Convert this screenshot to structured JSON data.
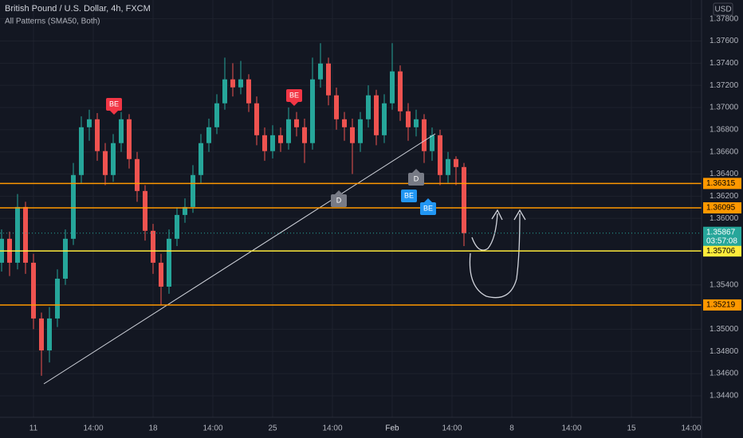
{
  "chart_data": {
    "type": "candlestick",
    "title": "British Pound / U.S. Dollar, 4h, FXCM",
    "subtitle": "All Patterns (SMA50, Both)",
    "currency": "USD",
    "countdown": "03:57:08",
    "up_color": "#26a69a",
    "down_color": "#ef5350",
    "x": [
      -8,
      -6,
      -4,
      -2,
      0,
      2,
      4,
      6,
      8,
      10,
      12,
      14,
      16,
      18,
      20,
      22,
      24,
      26,
      28,
      30,
      32,
      34,
      36,
      38,
      40,
      42,
      44,
      46,
      48,
      50,
      52,
      54,
      56,
      58,
      60,
      62,
      64,
      66,
      68,
      70,
      72,
      74,
      76,
      78,
      80,
      82,
      84,
      86,
      88,
      90,
      92,
      94,
      96,
      98,
      100,
      102,
      104,
      106,
      108
    ],
    "open": [
      1.356,
      1.35816,
      1.356,
      1.36103,
      1.356,
      1.35097,
      1.34809,
      1.35097,
      1.35456,
      1.35816,
      1.36391,
      1.36822,
      1.36894,
      1.36607,
      1.36391,
      1.36679,
      1.36894,
      1.36535,
      1.36247,
      1.35888,
      1.356,
      1.35384,
      1.35816,
      1.36031,
      1.36103,
      1.36391,
      1.36679,
      1.36822,
      1.37038,
      1.37254,
      1.37182,
      1.37254,
      1.37038,
      1.3675,
      1.36607,
      1.3675,
      1.36679,
      1.36894,
      1.36822,
      1.36679,
      1.37254,
      1.37397,
      1.3711,
      1.36894,
      1.36822,
      1.36679,
      1.36894,
      1.3711,
      1.3675,
      1.37038,
      1.37326,
      1.36966,
      1.36822,
      1.36894,
      1.36607,
      1.3675,
      1.36391,
      1.36535,
      1.36463
    ],
    "high": [
      1.359,
      1.3588,
      1.3622,
      1.3615,
      1.3568,
      1.3515,
      1.352,
      1.3554,
      1.359,
      1.365,
      1.3692,
      1.3698,
      1.3695,
      1.3668,
      1.3676,
      1.3696,
      1.3694,
      1.366,
      1.363,
      1.3595,
      1.3568,
      1.359,
      1.361,
      1.3618,
      1.3648,
      1.3676,
      1.369,
      1.3712,
      1.3745,
      1.374,
      1.3742,
      1.373,
      1.371,
      1.3682,
      1.3684,
      1.3682,
      1.37,
      1.3696,
      1.369,
      1.3745,
      1.3758,
      1.3745,
      1.3718,
      1.3696,
      1.369,
      1.3696,
      1.372,
      1.3716,
      1.3712,
      1.3758,
      1.3738,
      1.3704,
      1.3698,
      1.3694,
      1.3682,
      1.368,
      1.366,
      1.3656,
      1.365
    ],
    "low": [
      1.3552,
      1.3548,
      1.3554,
      1.355,
      1.35,
      1.3458,
      1.347,
      1.3502,
      1.354,
      1.3576,
      1.3632,
      1.367,
      1.3652,
      1.363,
      1.3633,
      1.366,
      1.3645,
      1.3615,
      1.358,
      1.355,
      1.3522,
      1.3532,
      1.3575,
      1.3596,
      1.3605,
      1.3632,
      1.366,
      1.3676,
      1.3698,
      1.371,
      1.3712,
      1.3696,
      1.3666,
      1.3652,
      1.3654,
      1.366,
      1.3662,
      1.3674,
      1.365,
      1.3662,
      1.3718,
      1.3702,
      1.368,
      1.367,
      1.364,
      1.366,
      1.3682,
      1.3666,
      1.3668,
      1.3698,
      1.3688,
      1.367,
      1.3674,
      1.365,
      1.3652,
      1.363,
      1.3632,
      1.363,
      1.3575
    ],
    "close": [
      1.35816,
      1.356,
      1.36103,
      1.356,
      1.35097,
      1.34809,
      1.35097,
      1.35456,
      1.35816,
      1.36391,
      1.36822,
      1.36894,
      1.36607,
      1.36391,
      1.36679,
      1.36894,
      1.36535,
      1.36247,
      1.35888,
      1.356,
      1.35384,
      1.35816,
      1.36031,
      1.36103,
      1.36391,
      1.36679,
      1.36822,
      1.37038,
      1.37254,
      1.37182,
      1.37254,
      1.37038,
      1.3675,
      1.36607,
      1.3675,
      1.36679,
      1.36894,
      1.36822,
      1.36679,
      1.37254,
      1.37397,
      1.3711,
      1.36894,
      1.36822,
      1.36679,
      1.36894,
      1.3711,
      1.3675,
      1.37038,
      1.37326,
      1.36966,
      1.36822,
      1.36894,
      1.36607,
      1.3675,
      1.36391,
      1.36535,
      1.36463,
      1.35867
    ],
    "xlim": [
      -8.4,
      167.6
    ],
    "ylim": [
      1.3422,
      1.3797
    ],
    "xticks": [
      {
        "value": 0,
        "label": "11"
      },
      {
        "value": 15,
        "label": "14:00"
      },
      {
        "value": 30,
        "label": "18"
      },
      {
        "value": 45,
        "label": "14:00"
      },
      {
        "value": 60,
        "label": "25"
      },
      {
        "value": 75,
        "label": "14:00"
      },
      {
        "value": 90,
        "label": "Feb"
      },
      {
        "value": 105,
        "label": "14:00"
      },
      {
        "value": 120,
        "label": "8"
      },
      {
        "value": 135,
        "label": "14:00"
      },
      {
        "value": 150,
        "label": "15"
      },
      {
        "value": 165,
        "label": "14:00"
      }
    ],
    "yticks": [
      {
        "value": 1.378,
        "label": "1.37800"
      },
      {
        "value": 1.376,
        "label": "1.37600"
      },
      {
        "value": 1.374,
        "label": "1.37400"
      },
      {
        "value": 1.372,
        "label": "1.37200"
      },
      {
        "value": 1.37,
        "label": "1.37000"
      },
      {
        "value": 1.368,
        "label": "1.36800"
      },
      {
        "value": 1.366,
        "label": "1.36600"
      },
      {
        "value": 1.364,
        "label": "1.36400"
      },
      {
        "value": 1.362,
        "label": "1.36200"
      },
      {
        "value": 1.36,
        "label": "1.36000"
      },
      {
        "value": 1.354,
        "label": "1.35400"
      },
      {
        "value": 1.35,
        "label": "1.35000"
      },
      {
        "value": 1.348,
        "label": "1.34800"
      },
      {
        "value": 1.346,
        "label": "1.34600"
      },
      {
        "value": 1.344,
        "label": "1.34400"
      }
    ],
    "grid": true,
    "levels": [
      {
        "value": 1.36315,
        "color": "#ff9800"
      },
      {
        "value": 1.36095,
        "color": "#ff9800"
      },
      {
        "value": 1.35706,
        "color": "#ffeb3b"
      },
      {
        "value": 1.35219,
        "color": "#ff9800"
      }
    ],
    "annotations": [
      {
        "text": "BE",
        "color": "#f23645"
      },
      {
        "text": "BE",
        "color": "#f23645"
      },
      {
        "text": "D",
        "color": "#787b86"
      },
      {
        "text": "D",
        "color": "#787b86"
      },
      {
        "text": "BE",
        "color": "#2196f3"
      },
      {
        "text": "BE",
        "color": "#2196f3"
      }
    ]
  }
}
